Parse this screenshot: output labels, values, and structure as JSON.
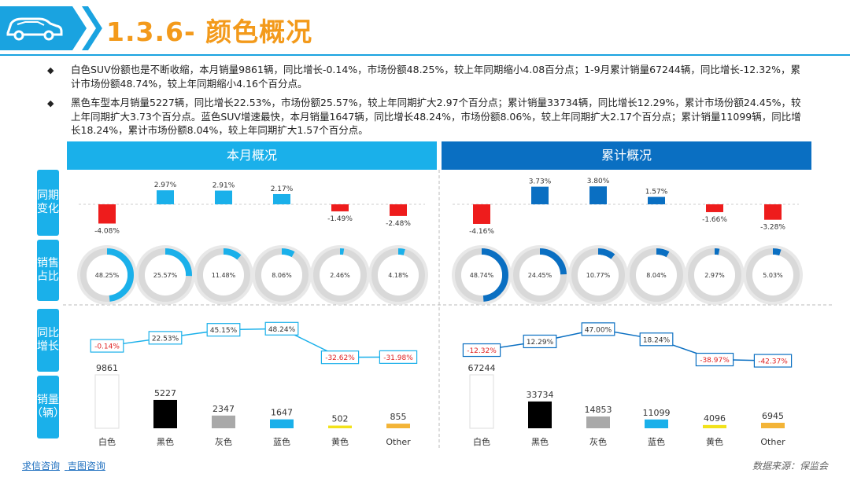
{
  "title": "1.3.6- 颜色概况",
  "bullets": [
    "白色SUV份额也是不断收缩，本月销量9861辆，同比增长-0.14%，市场份额48.25%，较上年同期缩小4.08百分点；1-9月累计销量67244辆，同比增长-12.32%，累计市场份额48.74%，较上年同期缩小4.16个百分点。",
    "黑色车型本月销量5227辆，同比增长22.53%，市场份额25.57%，较上年同期扩大2.97个百分点；累计销量33734辆，同比增长12.29%，累计市场份额24.45%，较上年同期扩大3.73个百分点。蓝色SUV增速最快，本月销量1647辆，同比增长48.24%，市场份额8.06%，较上年同期扩大2.17个百分点；累计销量11099辆，同比增长18.24%，累计市场份额8.04%，较上年同期扩大1.57个百分点。"
  ],
  "panel_headers": {
    "left": "本月概况",
    "right": "累计概况"
  },
  "side_labels": [
    "同期变化",
    "销售占比",
    "同比增长",
    "销量（辆）"
  ],
  "footer": {
    "link1": "求信咨询",
    "link2": "吉图咨询",
    "source": "数据来源：保监会"
  },
  "colors": {
    "orange": "#f39a1b",
    "left_blue": "#1ab0ea",
    "right_blue": "#0a6fc2",
    "red": "#ee1c1c",
    "donut_track": "#d9d9d9"
  },
  "chart_data": {
    "type": "dashboard",
    "categories": [
      "白色",
      "黑色",
      "灰色",
      "蓝色",
      "黄色",
      "Other"
    ],
    "bar_colors": [
      "#ffffff",
      "#000000",
      "#a9a9a9",
      "#1ab0ea",
      "#f2e21a",
      "#f3b437"
    ],
    "monthly": {
      "share_change": [
        -4.08,
        2.97,
        2.91,
        2.17,
        -1.49,
        -2.48
      ],
      "share_change_labels": [
        "-4.08%",
        "2.97%",
        "2.91%",
        "2.17%",
        "-1.49%",
        "-2.48%"
      ],
      "market_share": [
        48.25,
        25.57,
        11.48,
        8.06,
        2.46,
        4.18
      ],
      "market_share_labels": [
        "48.25%",
        "25.57%",
        "11.48%",
        "8.06%",
        "2.46%",
        "4.18%"
      ],
      "growth": [
        -0.14,
        22.53,
        45.15,
        48.24,
        -32.62,
        -31.98
      ],
      "growth_labels": [
        "-0.14%",
        "22.53%",
        "45.15%",
        "48.24%",
        "-32.62%",
        "-31.98%"
      ],
      "sales": [
        9861,
        5227,
        2347,
        1647,
        502,
        855
      ]
    },
    "cumulative": {
      "share_change": [
        -4.16,
        3.73,
        3.8,
        1.57,
        -1.66,
        -3.28
      ],
      "share_change_labels": [
        "-4.16%",
        "3.73%",
        "3.80%",
        "1.57%",
        "-1.66%",
        "-3.28%"
      ],
      "market_share": [
        48.74,
        24.45,
        10.77,
        8.04,
        2.97,
        5.03
      ],
      "market_share_labels": [
        "48.74%",
        "24.45%",
        "10.77%",
        "8.04%",
        "2.97%",
        "5.03%"
      ],
      "growth": [
        -12.32,
        12.29,
        47.0,
        18.24,
        -38.97,
        -42.37
      ],
      "growth_labels": [
        "-12.32%",
        "12.29%",
        "47.00%",
        "18.24%",
        "-38.97%",
        "-42.37%"
      ],
      "sales": [
        67244,
        33734,
        14853,
        11099,
        4096,
        6945
      ]
    }
  }
}
